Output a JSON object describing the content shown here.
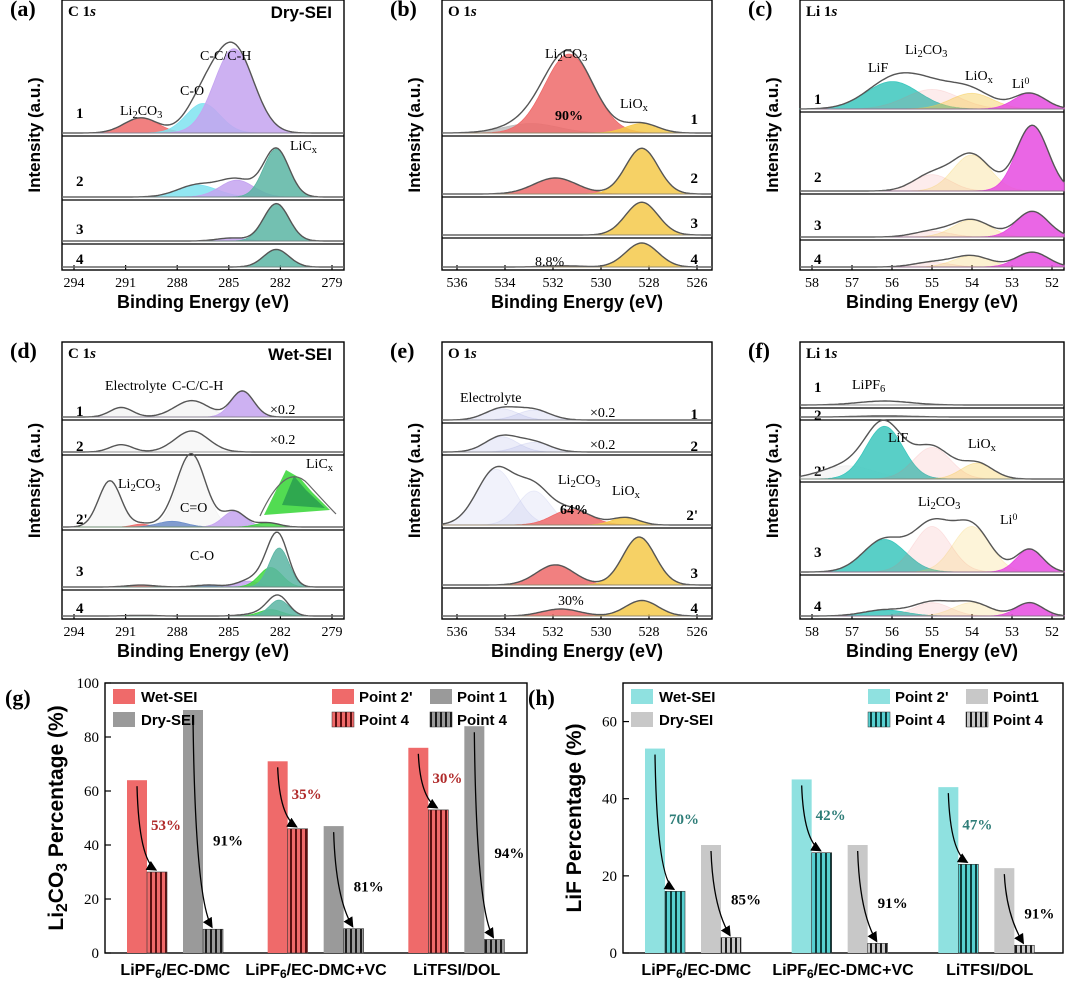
{
  "figure": {
    "panels": {
      "a": {
        "label": "(a)",
        "element": "C 1s",
        "title": "Dry-SEI",
        "xlabel": "Binding Energy (eV)",
        "ylabel": "Intensity (a.u.)",
        "xticks": [
          "294",
          "291",
          "288",
          "285",
          "282",
          "279"
        ],
        "rows": [
          "1",
          "2",
          "3",
          "4"
        ],
        "annotations": [
          "C-C/C-H",
          "C-O",
          "Li2CO3",
          "LiCx"
        ]
      },
      "b": {
        "label": "(b)",
        "element": "O 1s",
        "xlabel": "Binding Energy (eV)",
        "ylabel": "Intensity (a.u.)",
        "xticks": [
          "536",
          "534",
          "532",
          "530",
          "528",
          "526"
        ],
        "rows": [
          "1",
          "2",
          "3",
          "4"
        ],
        "annotations": [
          "Li2CO3",
          "90%",
          "LiOx",
          "8.8%"
        ]
      },
      "c": {
        "label": "(c)",
        "element": "Li 1s",
        "xlabel": "Binding Energy (eV)",
        "ylabel": "Intensity (a.u.)",
        "xticks": [
          "58",
          "57",
          "56",
          "55",
          "54",
          "53",
          "52"
        ],
        "rows": [
          "1",
          "2",
          "3",
          "4"
        ],
        "annotations": [
          "LiF",
          "Li2CO3",
          "LiOx",
          "Li0"
        ]
      },
      "d": {
        "label": "(d)",
        "element": "C 1s",
        "title": "Wet-SEI",
        "xlabel": "Binding Energy (eV)",
        "ylabel": "Intensity (a.u.)",
        "xticks": [
          "294",
          "291",
          "288",
          "285",
          "282",
          "279"
        ],
        "rows": [
          "1",
          "2",
          "2'",
          "3",
          "4"
        ],
        "annotations": [
          "Electrolyte",
          "C-C/C-H",
          "×0.2",
          "×0.2",
          "Li2CO3",
          "C=O",
          "LiCx",
          "C-O"
        ]
      },
      "e": {
        "label": "(e)",
        "element": "O 1s",
        "xlabel": "Binding Energy (eV)",
        "ylabel": "Intensity (a.u.)",
        "xticks": [
          "536",
          "534",
          "532",
          "530",
          "528",
          "526"
        ],
        "rows": [
          "1",
          "2",
          "2'",
          "3",
          "4"
        ],
        "annotations": [
          "Electrolyte",
          "×0.2",
          "×0.2",
          "Li2CO3",
          "LiOx",
          "64%",
          "30%"
        ]
      },
      "f": {
        "label": "(f)",
        "element": "Li 1s",
        "xlabel": "Binding Energy (eV)",
        "ylabel": "Intensity (a.u.)",
        "xticks": [
          "58",
          "57",
          "56",
          "55",
          "54",
          "53",
          "52"
        ],
        "rows": [
          "1",
          "2",
          "2'",
          "3",
          "4"
        ],
        "annotations": [
          "LiPF6",
          "LiF",
          "LiOx",
          "Li2CO3",
          "Li0"
        ]
      }
    },
    "colors": {
      "li2co3": "#ef6a6a",
      "co": "#7fe3f0",
      "cc": "#c4a3f0",
      "licx": "#5bb5a3",
      "liox": "#f5c94a",
      "lif": "#3cc7bd",
      "li0": "#e64be0",
      "electrolyte": "#8a9bd8",
      "cdo": "#5f84c8",
      "licx_wet": "#3fd83f"
    }
  },
  "chart_data": [
    {
      "type": "bar",
      "panel_label": "(g)",
      "ylabel": "Li2CO3 Percentage (%)",
      "ylim": [
        0,
        100
      ],
      "yticks": [
        0,
        20,
        40,
        60,
        80,
        100
      ],
      "categories": [
        "LiPF6/EC-DMC",
        "LiPF6/EC-DMC+VC",
        "LiTFSI/DOL"
      ],
      "series": [
        {
          "name": "Point 2'",
          "group": "Wet-SEI",
          "values": [
            64,
            71,
            76
          ]
        },
        {
          "name": "Point 4",
          "group": "Wet-SEI",
          "values": [
            30,
            46,
            53
          ]
        },
        {
          "name": "Point 1",
          "group": "Dry-SEI",
          "values": [
            90,
            47,
            84
          ]
        },
        {
          "name": "Point 4",
          "group": "Dry-SEI",
          "values": [
            8.8,
            9,
            5
          ]
        }
      ],
      "wet_drop_labels": [
        "53%",
        "35%",
        "30%"
      ],
      "dry_drop_labels": [
        "91%",
        "81%",
        "94%"
      ],
      "legend": {
        "groups": [
          "Wet-SEI",
          "Dry-SEI"
        ],
        "points": [
          "Point 2'",
          "Point 4",
          "Point 1",
          "Point 4"
        ]
      },
      "grid": false
    },
    {
      "type": "bar",
      "panel_label": "(h)",
      "ylabel": "LiF Percentage (%)",
      "ylim": [
        0,
        70
      ],
      "yticks": [
        0,
        20,
        40,
        60
      ],
      "categories": [
        "LiPF6/EC-DMC",
        "LiPF6/EC-DMC+VC",
        "LiTFSI/DOL"
      ],
      "series": [
        {
          "name": "Point 2'",
          "group": "Wet-SEI",
          "values": [
            53,
            45,
            43
          ]
        },
        {
          "name": "Point 4",
          "group": "Wet-SEI",
          "values": [
            16,
            26,
            23
          ]
        },
        {
          "name": "Point1",
          "group": "Dry-SEI",
          "values": [
            28,
            28,
            22
          ]
        },
        {
          "name": "Point 4",
          "group": "Dry-SEI",
          "values": [
            4,
            2.5,
            2
          ]
        }
      ],
      "wet_drop_labels": [
        "70%",
        "42%",
        "47%"
      ],
      "dry_drop_labels": [
        "85%",
        "91%",
        "91%"
      ],
      "legend": {
        "groups": [
          "Wet-SEI",
          "Dry-SEI"
        ],
        "points": [
          "Point 2'",
          "Point 4",
          "Point1",
          "Point 4"
        ]
      },
      "grid": false
    }
  ]
}
